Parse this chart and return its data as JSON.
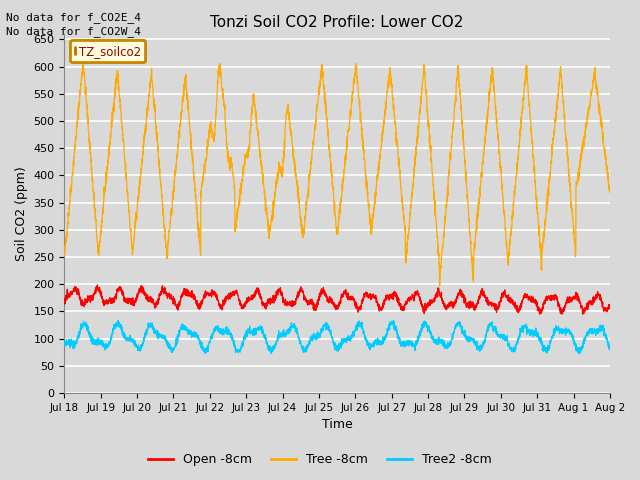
{
  "title": "Tonzi Soil CO2 Profile: Lower CO2",
  "xlabel": "Time",
  "ylabel": "Soil CO2 (ppm)",
  "ylim": [
    0,
    660
  ],
  "yticks": [
    0,
    50,
    100,
    150,
    200,
    250,
    300,
    350,
    400,
    450,
    500,
    550,
    600,
    650
  ],
  "xtick_labels": [
    "Jul 18",
    "Jul 19",
    "Jul 20",
    "Jul 21",
    "Jul 22",
    "Jul 23",
    "Jul 24",
    "Jul 25",
    "Jul 26",
    "Jul 27",
    "Jul 28",
    "Jul 29",
    "Jul 30",
    "Jul 31",
    "Aug 1",
    "Aug 2"
  ],
  "no_data_texts": [
    "No data for f_CO2E_4",
    "No data for f_CO2W_4"
  ],
  "legend_label": "TZ_soilco2",
  "legend_labels": [
    "Open -8cm",
    "Tree -8cm",
    "Tree2 -8cm"
  ],
  "legend_colors": [
    "#ff0000",
    "#ffaa00",
    "#00ccff"
  ],
  "bg_color": "#d9d9d9",
  "plot_bg_color": "#d9d9d9",
  "grid_color": "#ffffff",
  "open_color": "#ff0000",
  "tree_color": "#ffaa00",
  "tree2_color": "#00ccff",
  "n_points": 2880,
  "days": 16,
  "seed": 42
}
